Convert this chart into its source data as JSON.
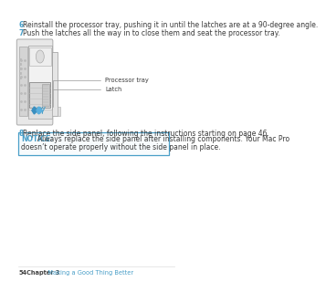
{
  "bg_color": "#ffffff",
  "step6_number": "6",
  "step6_text": "Reinstall the processor tray, pushing it in until the latches are at a 90-degree angle.",
  "step7_number": "7",
  "step7_text": "Push the latches all the way in to close them and seat the processor tray.",
  "step8_number": "8",
  "step8_text": "Replace the side panel, following the instructions starting on page 46.",
  "label1": "Processor tray",
  "label2": "Latch",
  "notice_label": "NOTICE:",
  "notice_text1": "  Always replace the side panel after installing components. Your Mac Pro",
  "notice_text2": "doesn’t operate properly without the side panel in place.",
  "footer_page": "54",
  "footer_chapter": "Chapter 3",
  "footer_section": "   Making a Good Thing Better",
  "accent_color": "#4a9fc8",
  "text_color": "#3a3a3a",
  "footer_text_color": "#444444",
  "notice_border_color": "#4a9fc8",
  "body_fontsize": 5.5,
  "small_fontsize": 4.8,
  "footer_fontsize": 4.8
}
